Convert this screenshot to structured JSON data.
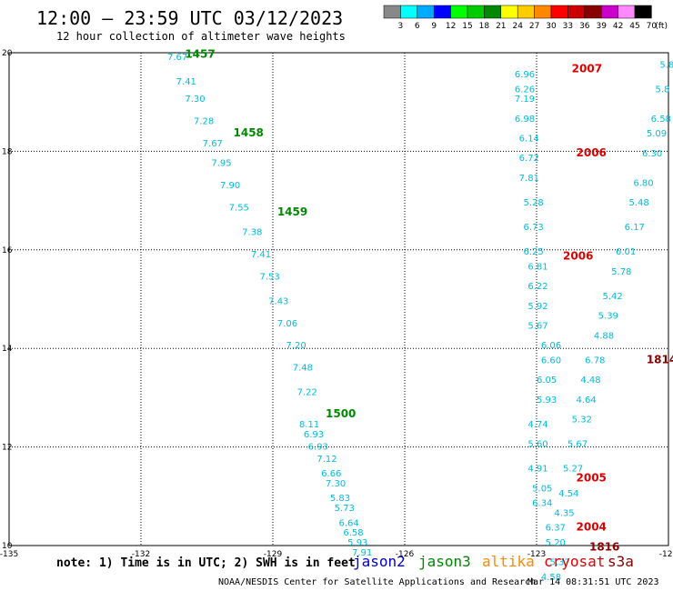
{
  "header": {
    "title": "12:00 – 23:59 UTC 03/12/2023",
    "subtitle": "12 hour collection of altimeter wave heights"
  },
  "footer": {
    "note": "note: 1) Time is in UTC; 2) SWH is in feet",
    "credit": "NOAA/NESDIS Center for Satellite Applications and Research",
    "timestamp": "Mar 14 08:31:51 UTC 2023",
    "satellites": [
      {
        "name": "jason2",
        "color": "#0000cc"
      },
      {
        "name": "jason3",
        "color": "#008800"
      },
      {
        "name": "altika",
        "color": "#ff8800"
      },
      {
        "name": "cryosat",
        "color": "#dd0000"
      },
      {
        "name": "s3a",
        "color": "#880000"
      }
    ]
  },
  "colorbar": {
    "unit": "(ft)",
    "labels": [
      "3",
      "6",
      "9",
      "12",
      "15",
      "18",
      "21",
      "24",
      "27",
      "30",
      "33",
      "36",
      "39",
      "42",
      "45",
      "70"
    ],
    "colors": [
      "#888888",
      "#00ffff",
      "#00aaff",
      "#0000ff",
      "#00ff00",
      "#00cc00",
      "#008800",
      "#ffff00",
      "#ffcc00",
      "#ff8800",
      "#ff0000",
      "#cc0000",
      "#880000",
      "#cc00cc",
      "#ff88ff",
      "#000000"
    ]
  },
  "chart_data": {
    "type": "scatter",
    "xlim": [
      -135,
      -120
    ],
    "ylim": [
      10,
      20
    ],
    "x_ticks": [
      -135,
      -132,
      -129,
      -126,
      -123,
      -120
    ],
    "x_tick_labels": [
      "-135",
      "-132",
      "-129",
      "-126",
      "-123",
      "-120"
    ],
    "y_ticks": [
      10,
      12,
      14,
      16,
      18,
      20
    ],
    "y_tick_labels": [
      "10",
      "12",
      "14",
      "16",
      "18",
      "20"
    ],
    "grid": true,
    "series": [
      {
        "satellite": "jason3",
        "color": "#00bbdd",
        "points": [
          {
            "lon": -131.4,
            "lat": 19.85,
            "label": "7.67"
          },
          {
            "lon": -131.2,
            "lat": 19.35,
            "label": "7.41"
          },
          {
            "lon": -131.0,
            "lat": 19.0,
            "label": "7.30"
          },
          {
            "lon": -130.8,
            "lat": 18.55,
            "label": "7.28"
          },
          {
            "lon": -130.6,
            "lat": 18.1,
            "label": "7.67"
          },
          {
            "lon": -130.4,
            "lat": 17.7,
            "label": "7.95"
          },
          {
            "lon": -130.2,
            "lat": 17.25,
            "label": "7.90"
          },
          {
            "lon": -130.0,
            "lat": 16.8,
            "label": "7.55"
          },
          {
            "lon": -129.7,
            "lat": 16.3,
            "label": "7.38"
          },
          {
            "lon": -129.5,
            "lat": 15.85,
            "label": "7.41"
          },
          {
            "lon": -129.3,
            "lat": 15.4,
            "label": "7.53"
          },
          {
            "lon": -129.1,
            "lat": 14.9,
            "label": "7.43"
          },
          {
            "lon": -128.9,
            "lat": 14.45,
            "label": "7.06"
          },
          {
            "lon": -128.7,
            "lat": 14.0,
            "label": "7.20"
          },
          {
            "lon": -128.55,
            "lat": 13.55,
            "label": "7.48"
          },
          {
            "lon": -128.45,
            "lat": 13.05,
            "label": "7.22"
          },
          {
            "lon": -128.4,
            "lat": 12.4,
            "label": "8.11"
          },
          {
            "lon": -128.3,
            "lat": 12.2,
            "label": "6.93"
          },
          {
            "lon": -128.2,
            "lat": 11.95,
            "label": "6.93"
          },
          {
            "lon": -128.0,
            "lat": 11.7,
            "label": "7.12"
          },
          {
            "lon": -127.9,
            "lat": 11.4,
            "label": "6.66"
          },
          {
            "lon": -127.8,
            "lat": 11.2,
            "label": "7.30"
          },
          {
            "lon": -127.7,
            "lat": 10.9,
            "label": "5.83"
          },
          {
            "lon": -127.6,
            "lat": 10.7,
            "label": "5.73"
          },
          {
            "lon": -127.5,
            "lat": 10.4,
            "label": "6.64"
          },
          {
            "lon": -127.4,
            "lat": 10.2,
            "label": "6.58"
          },
          {
            "lon": -127.3,
            "lat": 10.0,
            "label": "5.93"
          },
          {
            "lon": -127.2,
            "lat": 9.8,
            "label": "7.91"
          }
        ]
      },
      {
        "satellite": "cryosat",
        "color": "#00bbdd",
        "points": [
          {
            "lon": -123.5,
            "lat": 19.5,
            "label": "6.96"
          },
          {
            "lon": -123.5,
            "lat": 19.2,
            "label": "6.26"
          },
          {
            "lon": -123.5,
            "lat": 19.0,
            "label": "7.19"
          },
          {
            "lon": -123.5,
            "lat": 18.6,
            "label": "6.98"
          },
          {
            "lon": -123.4,
            "lat": 18.2,
            "label": "6.14"
          },
          {
            "lon": -123.4,
            "lat": 17.8,
            "label": "6.72"
          },
          {
            "lon": -123.4,
            "lat": 17.4,
            "label": "7.81"
          },
          {
            "lon": -123.3,
            "lat": 16.9,
            "label": "5.28"
          },
          {
            "lon": -123.3,
            "lat": 16.4,
            "label": "6.73"
          },
          {
            "lon": -123.3,
            "lat": 15.9,
            "label": "6.25"
          },
          {
            "lon": -123.2,
            "lat": 15.6,
            "label": "6.81"
          },
          {
            "lon": -123.2,
            "lat": 15.2,
            "label": "6.22"
          },
          {
            "lon": -123.2,
            "lat": 14.8,
            "label": "5.92"
          },
          {
            "lon": -123.2,
            "lat": 14.4,
            "label": "5.67"
          },
          {
            "lon": -122.9,
            "lat": 14.0,
            "label": "6.06"
          },
          {
            "lon": -122.9,
            "lat": 13.7,
            "label": "6.60"
          },
          {
            "lon": -123.0,
            "lat": 13.3,
            "label": "6.05"
          },
          {
            "lon": -123.0,
            "lat": 12.9,
            "label": "5.93"
          },
          {
            "lon": -123.2,
            "lat": 12.4,
            "label": "4.74"
          },
          {
            "lon": -123.2,
            "lat": 12.0,
            "label": "5.60"
          },
          {
            "lon": -123.2,
            "lat": 11.5,
            "label": "4.91"
          },
          {
            "lon": -123.1,
            "lat": 11.1,
            "label": "5.05"
          },
          {
            "lon": -123.1,
            "lat": 10.8,
            "label": "6.34"
          },
          {
            "lon": -122.8,
            "lat": 10.3,
            "label": "6.37"
          },
          {
            "lon": -122.8,
            "lat": 10.0,
            "label": "5.20"
          },
          {
            "lon": -122.7,
            "lat": 9.6,
            "label": "5.37"
          },
          {
            "lon": -122.9,
            "lat": 9.3,
            "label": "4.58"
          }
        ]
      },
      {
        "satellite": "s3a",
        "color": "#00bbdd",
        "points": [
          {
            "lon": -120.2,
            "lat": 19.7,
            "label": "5.8"
          },
          {
            "lon": -120.3,
            "lat": 19.2,
            "label": "5.8"
          },
          {
            "lon": -120.4,
            "lat": 18.6,
            "label": "6.58"
          },
          {
            "lon": -120.5,
            "lat": 18.3,
            "label": "5.09"
          },
          {
            "lon": -120.6,
            "lat": 17.9,
            "label": "6.30"
          },
          {
            "lon": -120.8,
            "lat": 17.3,
            "label": "6.80"
          },
          {
            "lon": -120.9,
            "lat": 16.9,
            "label": "5.48"
          },
          {
            "lon": -121.0,
            "lat": 16.4,
            "label": "6.17"
          },
          {
            "lon": -121.2,
            "lat": 15.9,
            "label": "6.01"
          },
          {
            "lon": -121.3,
            "lat": 15.5,
            "label": "5.78"
          },
          {
            "lon": -121.5,
            "lat": 15.0,
            "label": "5.42"
          },
          {
            "lon": -121.6,
            "lat": 14.6,
            "label": "5.39"
          },
          {
            "lon": -121.7,
            "lat": 14.2,
            "label": "4.88"
          },
          {
            "lon": -121.9,
            "lat": 13.7,
            "label": "6.78"
          },
          {
            "lon": -122.0,
            "lat": 13.3,
            "label": "4.48"
          },
          {
            "lon": -122.1,
            "lat": 12.9,
            "label": "4.64"
          },
          {
            "lon": -122.2,
            "lat": 12.5,
            "label": "5.32"
          },
          {
            "lon": -122.3,
            "lat": 12.0,
            "label": "5.67"
          },
          {
            "lon": -122.4,
            "lat": 11.5,
            "label": "5.27"
          },
          {
            "lon": -122.5,
            "lat": 11.0,
            "label": "4.54"
          },
          {
            "lon": -122.6,
            "lat": 10.6,
            "label": "4.35"
          }
        ]
      }
    ],
    "time_labels": [
      {
        "lon": -131.0,
        "lat": 19.9,
        "text": "1457",
        "color": "#008800"
      },
      {
        "lon": -129.9,
        "lat": 18.3,
        "text": "1458",
        "color": "#008800"
      },
      {
        "lon": -128.9,
        "lat": 16.7,
        "text": "1459",
        "color": "#008800"
      },
      {
        "lon": -127.8,
        "lat": 12.6,
        "text": "1500",
        "color": "#008800"
      },
      {
        "lon": -122.2,
        "lat": 19.6,
        "text": "2007",
        "color": "#dd0000"
      },
      {
        "lon": -122.1,
        "lat": 17.9,
        "text": "2006",
        "color": "#dd0000"
      },
      {
        "lon": -122.4,
        "lat": 15.8,
        "text": "2006",
        "color": "#dd0000"
      },
      {
        "lon": -122.1,
        "lat": 11.3,
        "text": "2005",
        "color": "#dd0000"
      },
      {
        "lon": -122.1,
        "lat": 10.3,
        "text": "2004",
        "color": "#dd0000"
      },
      {
        "lon": -121.8,
        "lat": 9.9,
        "text": "1816",
        "color": "#880000"
      },
      {
        "lon": -120.5,
        "lat": 13.7,
        "text": "1814",
        "color": "#880000"
      }
    ]
  }
}
